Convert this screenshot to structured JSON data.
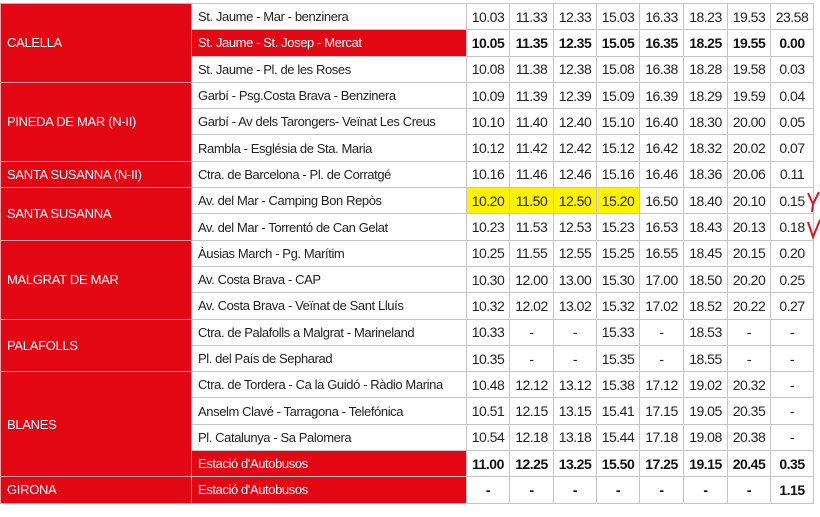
{
  "highlight_color": "#fff200",
  "accent_color": "#e30613",
  "rows": [
    {
      "town": "CALELLA",
      "span": 3,
      "stop": "St. Jaume - Mar - benzinera",
      "times": [
        "10.03",
        "11.33",
        "12.33",
        "15.03",
        "16.33",
        "18.23",
        "19.53",
        "23.58"
      ]
    },
    {
      "stop": "St. Jaume - St. Josep - Mercat",
      "bold": true,
      "times": [
        "10.05",
        "11.35",
        "12.35",
        "15.05",
        "16.35",
        "18.25",
        "19.55",
        "0.00"
      ]
    },
    {
      "stop": "St. Jaume - Pl. de les Roses",
      "times": [
        "10.08",
        "11.38",
        "12.38",
        "15.08",
        "16.38",
        "18.28",
        "19.58",
        "0.03"
      ]
    },
    {
      "town": "PINEDA DE MAR (N-II)",
      "span": 3,
      "stop": "Garbí - Psg.Costa Brava - Benzinera",
      "times": [
        "10.09",
        "11.39",
        "12.39",
        "15.09",
        "16.39",
        "18.29",
        "19.59",
        "0.04"
      ]
    },
    {
      "stop": "Garbí - Av dels Tarongers- Veïnat Les Creus",
      "times": [
        "10.10",
        "11.40",
        "12.40",
        "15.10",
        "16.40",
        "18.30",
        "20.00",
        "0.05"
      ]
    },
    {
      "stop": "Rambla - Església de Sta. Maria",
      "times": [
        "10.12",
        "11.42",
        "12.42",
        "15.12",
        "16.42",
        "18.32",
        "20.02",
        "0.07"
      ]
    },
    {
      "town": "SANTA SUSANNA (N-II)",
      "span": 1,
      "stop": "Ctra. de Barcelona - Pl. de Corratgé",
      "times": [
        "10.16",
        "11.46",
        "12.46",
        "15.16",
        "16.46",
        "18.36",
        "20.06",
        "0.11"
      ]
    },
    {
      "town": "SANTA SUSANNA",
      "span": 2,
      "stop": "Av. del Mar - Camping Bon Repòs",
      "highlighted_times": 4,
      "times": [
        "10.20",
        "11.50",
        "12.50",
        "15.20",
        "16.50",
        "18.40",
        "20.10",
        "0.15"
      ]
    },
    {
      "stop": "Av. del Mar - Torrentó de Can Gelat",
      "times": [
        "10.23",
        "11.53",
        "12.53",
        "15.23",
        "16.53",
        "18.43",
        "20.13",
        "0.18"
      ]
    },
    {
      "town": "MALGRAT DE MAR",
      "span": 3,
      "stop": "Àusias March - Pg. Marítim",
      "times": [
        "10.25",
        "11.55",
        "12.55",
        "15.25",
        "16.55",
        "18.45",
        "20.15",
        "0.20"
      ]
    },
    {
      "stop": "Av. Costa Brava - CAP",
      "times": [
        "10.30",
        "12.00",
        "13.00",
        "15.30",
        "17.00",
        "18.50",
        "20.20",
        "0.25"
      ]
    },
    {
      "stop": "Av. Costa Brava - Veïnat de Sant Lluís",
      "times": [
        "10.32",
        "12.02",
        "13.02",
        "15.32",
        "17.02",
        "18.52",
        "20.22",
        "0.27"
      ]
    },
    {
      "town": "PALAFOLLS",
      "span": 2,
      "stop": "Ctra. de Palafolls a Malgrat - Marineland",
      "times": [
        "10.33",
        "-",
        "-",
        "15.33",
        "-",
        "18.53",
        "-",
        "-"
      ]
    },
    {
      "stop": "Pl. del País de Sepharad",
      "times": [
        "10.35",
        "-",
        "-",
        "15.35",
        "-",
        "18.55",
        "-",
        "-"
      ]
    },
    {
      "town": "BLANES",
      "span": 4,
      "stop": "Ctra. de Tordera - Ca la Guidó - Ràdio Marina",
      "times": [
        "10.48",
        "12.12",
        "13.12",
        "15.38",
        "17.12",
        "19.02",
        "20.32",
        "-"
      ]
    },
    {
      "stop": "Anselm Clavé - Tarragona - Telefónica",
      "times": [
        "10.51",
        "12.15",
        "13.15",
        "15.41",
        "17.15",
        "19.05",
        "20.35",
        "-"
      ]
    },
    {
      "stop": "Pl. Catalunya - Sa Palomera",
      "times": [
        "10.54",
        "12.18",
        "13.18",
        "15.44",
        "17.18",
        "19.08",
        "20.38",
        "-"
      ]
    },
    {
      "stop": "Estació d'Autobusos",
      "bold": true,
      "times": [
        "11.00",
        "12.25",
        "13.25",
        "15.50",
        "17.25",
        "19.15",
        "20.45",
        "0.35"
      ]
    },
    {
      "town": "GIRONA",
      "span": 1,
      "stop": "Estació d'Autobusos",
      "bold": true,
      "times": [
        "-",
        "-",
        "-",
        "-",
        "-",
        "-",
        "-",
        "1.15"
      ]
    }
  ]
}
